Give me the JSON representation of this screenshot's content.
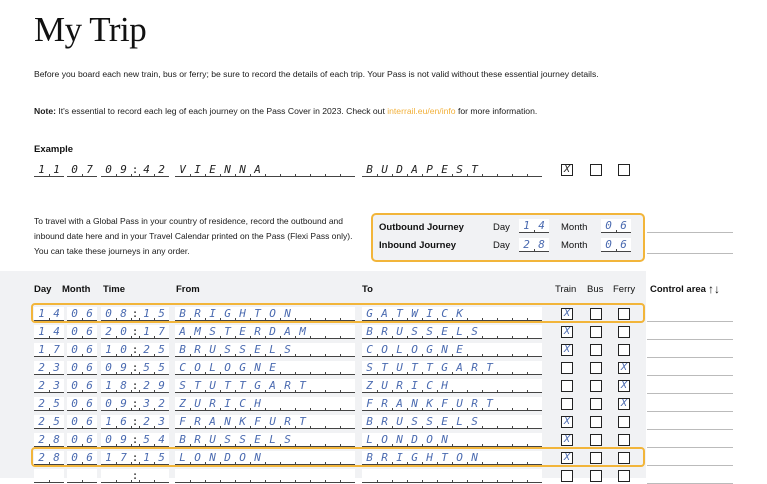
{
  "title": "My Trip",
  "intro": "Before you board each new train, bus or ferry; be sure to record the details of each trip. Your Pass is not valid without these essential journey details.",
  "note": {
    "label": "Note:",
    "text": " It's essential to record each leg of each journey on the Pass Cover in 2023. Check out ",
    "link": "interrail.eu/en/info",
    "after": " for more information."
  },
  "example": {
    "label": "Example",
    "day": "11",
    "month": "07",
    "time": "0942",
    "from": "VIENNA",
    "to": "BUDAPEST",
    "train": true,
    "bus": false,
    "ferry": false
  },
  "global_pass_text": "To travel with a Global Pass in your country of residence, record the outbound and inbound date here and in your Travel Calendar printed on the Pass (Flexi Pass only). You can take these journeys in any order.",
  "outbound": {
    "label": "Outbound Journey",
    "day_label": "Day",
    "day": "14",
    "month_label": "Month",
    "month": "06"
  },
  "inbound": {
    "label": "Inbound Journey",
    "day_label": "Day",
    "day": "28",
    "month_label": "Month",
    "month": "06"
  },
  "table": {
    "headers": {
      "day": "Day",
      "month": "Month",
      "time": "Time",
      "from": "From",
      "to": "To",
      "train": "Train",
      "bus": "Bus",
      "ferry": "Ferry",
      "control": "Control area",
      "sort_icon": "↑↓"
    },
    "rows": [
      {
        "day": "14",
        "month": "06",
        "time": "0815",
        "from": "BRIGHTON",
        "to": "GATWICK",
        "mode": "train",
        "highlighted": true
      },
      {
        "day": "14",
        "month": "06",
        "time": "2017",
        "from": "AMSTERDAM",
        "to": "BRUSSELS",
        "mode": "train"
      },
      {
        "day": "17",
        "month": "06",
        "time": "1025",
        "from": "BRUSSELS",
        "to": "COLOGNE",
        "mode": "train"
      },
      {
        "day": "23",
        "month": "06",
        "time": "0955",
        "from": "COLOGNE",
        "to": "STUTTGART",
        "mode": "ferry"
      },
      {
        "day": "23",
        "month": "06",
        "time": "1829",
        "from": "STUTTGART",
        "to": "ZURICH",
        "mode": "ferry"
      },
      {
        "day": "25",
        "month": "06",
        "time": "0932",
        "from": "ZURICH",
        "to": "FRANKFURT",
        "mode": "ferry"
      },
      {
        "day": "25",
        "month": "06",
        "time": "1623",
        "from": "FRANKFURT",
        "to": "BRUSSELS",
        "mode": "train"
      },
      {
        "day": "28",
        "month": "06",
        "time": "0954",
        "from": "BRUSSELS",
        "to": "LONDON",
        "mode": "train"
      },
      {
        "day": "28",
        "month": "06",
        "time": "1715",
        "from": "LONDON",
        "to": "BRIGHTON",
        "mode": "train",
        "highlighted": true
      },
      {
        "day": "",
        "month": "",
        "time": "",
        "from": "",
        "to": "",
        "mode": ""
      }
    ]
  },
  "colors": {
    "accent": "#f2b53a",
    "handwriting": "#4a6ab0",
    "panel": "#f1f2f4"
  }
}
